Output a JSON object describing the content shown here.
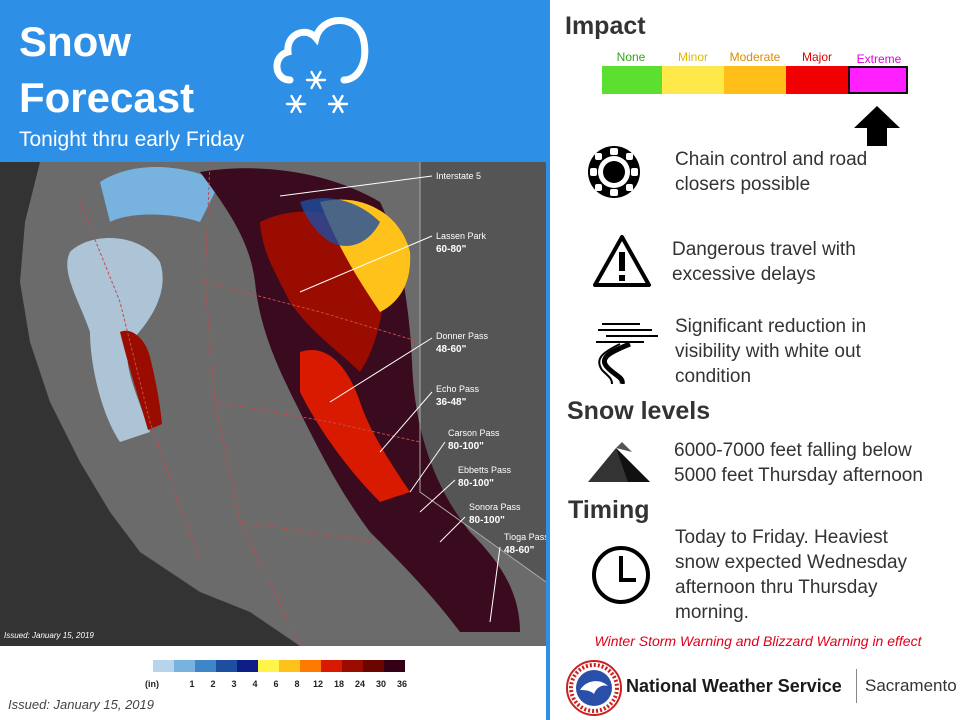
{
  "header": {
    "title_line1": "Snow",
    "title_line2": "Forecast",
    "subtitle": "Tonight thru early Friday"
  },
  "map": {
    "issued": "Issued: January 15, 2019",
    "labels": [
      {
        "name": "Interstate 5",
        "amount": ""
      },
      {
        "name": "Lassen Park",
        "amount": "60-80\""
      },
      {
        "name": "Donner Pass",
        "amount": "48-60\""
      },
      {
        "name": "Echo Pass",
        "amount": "36-48\""
      },
      {
        "name": "Carson Pass",
        "amount": "80-100\""
      },
      {
        "name": "Ebbetts Pass",
        "amount": "80-100\""
      },
      {
        "name": "Sonora Pass",
        "amount": "80-100\""
      },
      {
        "name": "Tioga Pass",
        "amount": "48-60\""
      }
    ]
  },
  "legend": {
    "unit": "(in)",
    "ticks": [
      "1",
      "2",
      "3",
      "4",
      "6",
      "8",
      "12",
      "18",
      "24",
      "30",
      "36"
    ],
    "colors": [
      "#b8d4ea",
      "#78b2de",
      "#3f86c8",
      "#1d4ea0",
      "#0d1e86",
      "#fff54a",
      "#ffc21a",
      "#ff7a00",
      "#d71a00",
      "#9b0c00",
      "#6c0500",
      "#350016"
    ]
  },
  "issued_bottom": "Issued: January 15, 2019",
  "impact": {
    "heading": "Impact",
    "levels": [
      {
        "label": "None",
        "color": "#5ce030",
        "text_color": "#2eaa10"
      },
      {
        "label": "Minor",
        "color": "#ffe84a",
        "text_color": "#e0b800"
      },
      {
        "label": "Moderate",
        "color": "#ffbe18",
        "text_color": "#e08a00"
      },
      {
        "label": "Major",
        "color": "#f00000",
        "text_color": "#e00000"
      },
      {
        "label": "Extreme",
        "color": "#ff20ff",
        "text_color": "#e000e0"
      }
    ],
    "selected": "Extreme"
  },
  "items": [
    {
      "icon": "chain-icon",
      "text_line1": "Chain control and road",
      "text_line2": "closers possible"
    },
    {
      "icon": "warning-triangle-icon",
      "text_line1": "Dangerous travel with",
      "text_line2": "excessive delays"
    },
    {
      "icon": "blowing-snow-road-icon",
      "text_line1": "Significant reduction in",
      "text_line2": "visibility with white out",
      "text_line3": "condition"
    }
  ],
  "snow_levels": {
    "heading": "Snow levels",
    "text_line1": "6000-7000  feet falling below",
    "text_line2": "5000 feet Thursday afternoon"
  },
  "timing": {
    "heading": "Timing",
    "text_line1": "Today to Friday. Heaviest",
    "text_line2": "snow expected Wednesday",
    "text_line3": "afternoon thru Thursday",
    "text_line4": "morning."
  },
  "warning": "Winter Storm Warning and Blizzard Warning in effect",
  "footer": {
    "agency": "National Weather Service",
    "office": "Sacramento"
  }
}
